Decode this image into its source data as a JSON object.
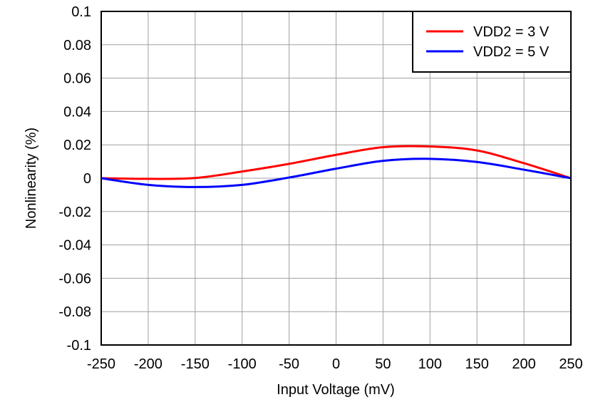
{
  "chart_data": {
    "type": "line",
    "title": "",
    "xlabel": "Input Voltage (mV)",
    "ylabel": "Nonlinearity (%)",
    "xlim": [
      -250,
      250
    ],
    "ylim": [
      -0.1,
      0.1
    ],
    "xticks": [
      "-250",
      "-200",
      "-150",
      "-100",
      "-50",
      "0",
      "50",
      "100",
      "150",
      "200",
      "250"
    ],
    "yticks": [
      "0.1",
      "0.08",
      "0.06",
      "0.04",
      "0.02",
      "0",
      "-0.02",
      "-0.04",
      "-0.06",
      "-0.08",
      "-0.1"
    ],
    "grid": true,
    "legend_position": "top-right",
    "x": [
      -250,
      -200,
      -150,
      -100,
      -50,
      0,
      50,
      100,
      150,
      200,
      250
    ],
    "series": [
      {
        "name": "VDD2 = 3 V",
        "color": "#ff0000",
        "values": [
          0,
          -0.0004,
          0.0001,
          0.004,
          0.0086,
          0.014,
          0.0186,
          0.019,
          0.0166,
          0.009,
          0
        ]
      },
      {
        "name": "VDD2 = 5 V",
        "color": "#0000ff",
        "values": [
          0,
          -0.004,
          -0.0053,
          -0.004,
          0.0004,
          0.0057,
          0.0104,
          0.0116,
          0.0097,
          0.0051,
          0
        ]
      }
    ]
  }
}
